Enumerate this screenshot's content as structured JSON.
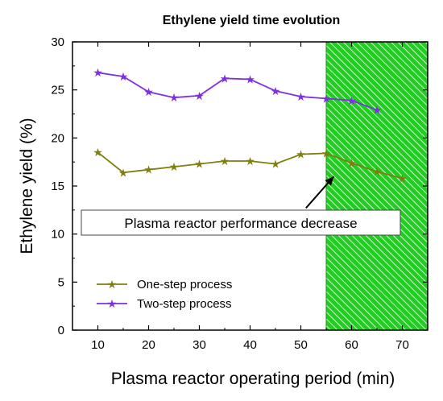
{
  "chart_data": {
    "type": "line",
    "title": "Ethylene yield time evolution",
    "xlabel": "Plasma reactor operating period (min)",
    "ylabel": "Ethylene yield (%)",
    "xlim": [
      5,
      75
    ],
    "ylim": [
      0,
      30
    ],
    "xticks": [
      10,
      20,
      30,
      40,
      50,
      60,
      70
    ],
    "yticks": [
      0,
      5,
      10,
      15,
      20,
      25,
      30
    ],
    "grid": false,
    "legend_position": "lower-left",
    "series": [
      {
        "name": "One-step process",
        "color": "#7f7f0f",
        "marker": "star",
        "x": [
          10,
          15,
          20,
          25,
          30,
          35,
          40,
          45,
          50,
          55,
          60,
          65,
          70
        ],
        "y": [
          18.5,
          16.4,
          16.7,
          17.0,
          17.3,
          17.6,
          17.6,
          17.3,
          18.3,
          18.4,
          17.4,
          16.5,
          15.8
        ]
      },
      {
        "name": "Two-step process",
        "color": "#7f2fe0",
        "marker": "star",
        "x": [
          10,
          15,
          20,
          25,
          30,
          35,
          40,
          45,
          50,
          55,
          60,
          65
        ],
        "y": [
          26.8,
          26.4,
          24.8,
          24.2,
          24.4,
          26.2,
          26.1,
          24.9,
          24.3,
          24.1,
          23.9,
          22.9
        ]
      }
    ],
    "shaded_region": {
      "x_start": 55,
      "x_end": 75,
      "color": "#22cc22"
    },
    "annotation": {
      "text": "Plasma reactor performance decrease",
      "arrow_to": {
        "x": 56.5,
        "y": 16.0
      },
      "arrow_from": {
        "x": 51.0,
        "y": 12.7
      }
    }
  }
}
